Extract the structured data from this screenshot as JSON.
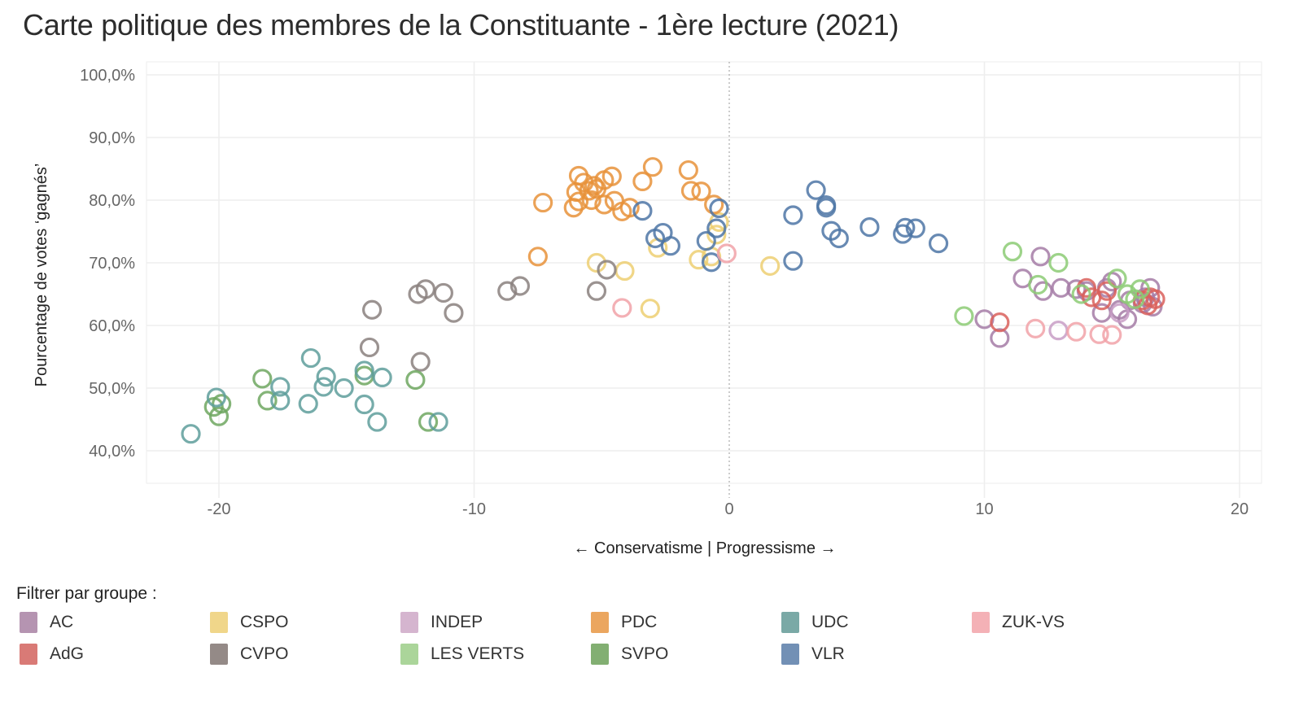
{
  "title": "Carte politique des membres de la Constituante - 1ère lecture (2021)",
  "chart_data": {
    "type": "scatter",
    "title": "Carte politique des membres de la Constituante - 1ère lecture (2021)",
    "xlabel": "← Conservatisme | Progressisme →",
    "ylabel": "Pourcentage de votes ‘gagnés’",
    "xlim": [
      -23,
      20.5
    ],
    "ylim": [
      35,
      102
    ],
    "xticks": [
      -20,
      -10,
      0,
      10,
      20
    ],
    "xtick_labels": [
      "-20",
      "-10",
      "0",
      "10",
      "20"
    ],
    "yticks": [
      40,
      50,
      60,
      70,
      80,
      90,
      100
    ],
    "ytick_labels": [
      "40,0%",
      "50,0%",
      "60,0%",
      "70,0%",
      "80,0%",
      "90,0%",
      "100,0%"
    ],
    "grid": true,
    "zero_line": "dotted-vertical-at-x-0",
    "marker": "open-circle",
    "legend_position": "bottom",
    "series": [
      {
        "name": "AC",
        "color": "#A57BA6",
        "points": [
          [
            10.0,
            61.0
          ],
          [
            10.6,
            58.0
          ],
          [
            12.2,
            71.0
          ],
          [
            11.5,
            67.5
          ],
          [
            12.3,
            65.5
          ],
          [
            13.0,
            66.0
          ],
          [
            13.6,
            65.8
          ],
          [
            14.0,
            65.5
          ],
          [
            14.6,
            62.0
          ],
          [
            14.8,
            66.0
          ],
          [
            15.0,
            67.0
          ],
          [
            15.3,
            62.5
          ],
          [
            15.7,
            64.0
          ],
          [
            15.6,
            61.0
          ],
          [
            16.2,
            63.5
          ],
          [
            16.5,
            66.0
          ],
          [
            16.6,
            63.0
          ],
          [
            16.3,
            64.5
          ]
        ]
      },
      {
        "name": "AdG",
        "color": "#D9605C",
        "points": [
          [
            10.6,
            60.5
          ],
          [
            14.0,
            66.0
          ],
          [
            14.2,
            64.5
          ],
          [
            14.6,
            64.0
          ],
          [
            14.8,
            65.5
          ],
          [
            16.2,
            64.0
          ],
          [
            16.5,
            64.5
          ],
          [
            16.7,
            64.2
          ],
          [
            16.4,
            63.2
          ]
        ]
      },
      {
        "name": "CSPO",
        "color": "#EDCF72",
        "points": [
          [
            -5.2,
            70.0
          ],
          [
            -4.1,
            68.7
          ],
          [
            -2.8,
            72.4
          ],
          [
            -0.4,
            76.5
          ],
          [
            -0.5,
            74.5
          ],
          [
            -1.2,
            70.5
          ],
          [
            -0.7,
            71.0
          ],
          [
            1.6,
            69.5
          ],
          [
            -3.1,
            62.7
          ]
        ]
      },
      {
        "name": "CVPO",
        "color": "#8A807E",
        "points": [
          [
            -14.0,
            62.5
          ],
          [
            -14.1,
            56.5
          ],
          [
            -12.2,
            65.0
          ],
          [
            -11.9,
            65.8
          ],
          [
            -11.2,
            65.2
          ],
          [
            -10.8,
            62.0
          ],
          [
            -8.7,
            65.5
          ],
          [
            -8.2,
            66.3
          ],
          [
            -5.2,
            65.5
          ],
          [
            -4.8,
            68.9
          ],
          [
            -12.1,
            54.2
          ]
        ]
      },
      {
        "name": "INDEP",
        "color": "#C89DC5",
        "points": [
          [
            12.9,
            59.2
          ],
          [
            15.3,
            62.0
          ]
        ]
      },
      {
        "name": "LES VERTS",
        "color": "#8CCB74",
        "points": [
          [
            11.1,
            71.8
          ],
          [
            12.9,
            70.0
          ],
          [
            12.1,
            66.5
          ],
          [
            9.2,
            61.5
          ],
          [
            13.8,
            65.0
          ],
          [
            15.2,
            67.5
          ],
          [
            15.6,
            65.0
          ],
          [
            16.1,
            65.8
          ],
          [
            15.9,
            64.2
          ]
        ]
      },
      {
        "name": "PDC",
        "color": "#E8923A",
        "points": [
          [
            -5.9,
            83.9
          ],
          [
            -5.7,
            82.8
          ],
          [
            -5.5,
            81.5
          ],
          [
            -5.3,
            82.3
          ],
          [
            -5.2,
            81.8
          ],
          [
            -4.9,
            83.2
          ],
          [
            -4.6,
            83.8
          ],
          [
            -6.0,
            81.3
          ],
          [
            -6.1,
            78.8
          ],
          [
            -5.4,
            80.0
          ],
          [
            -4.9,
            79.3
          ],
          [
            -4.5,
            79.9
          ],
          [
            -4.2,
            78.2
          ],
          [
            -3.9,
            78.8
          ],
          [
            -5.9,
            79.8
          ],
          [
            -3.4,
            83.0
          ],
          [
            -3.0,
            85.3
          ],
          [
            -7.3,
            79.6
          ],
          [
            -7.5,
            71.0
          ],
          [
            -1.6,
            84.8
          ],
          [
            -1.5,
            81.5
          ],
          [
            -1.1,
            81.4
          ],
          [
            -0.6,
            79.3
          ]
        ]
      },
      {
        "name": "SVPO",
        "color": "#6FA760",
        "points": [
          [
            -20.0,
            45.5
          ],
          [
            -19.9,
            47.5
          ],
          [
            -18.3,
            51.5
          ],
          [
            -18.1,
            48.0
          ],
          [
            -14.3,
            52.0
          ],
          [
            -12.3,
            51.3
          ],
          [
            -11.8,
            44.6
          ],
          [
            -20.2,
            47.0
          ]
        ]
      },
      {
        "name": "UDC",
        "color": "#5E9E9B",
        "points": [
          [
            -21.1,
            42.7
          ],
          [
            -20.1,
            48.5
          ],
          [
            -17.6,
            50.2
          ],
          [
            -17.6,
            48.0
          ],
          [
            -16.4,
            54.8
          ],
          [
            -15.8,
            51.8
          ],
          [
            -15.1,
            50.0
          ],
          [
            -16.5,
            47.5
          ],
          [
            -14.3,
            52.8
          ],
          [
            -13.6,
            51.7
          ],
          [
            -14.3,
            47.4
          ],
          [
            -13.8,
            44.6
          ],
          [
            -11.4,
            44.6
          ],
          [
            -15.9,
            50.2
          ]
        ]
      },
      {
        "name": "VLR",
        "color": "#4E76A6",
        "points": [
          [
            -3.4,
            78.3
          ],
          [
            -2.9,
            73.9
          ],
          [
            -2.6,
            74.8
          ],
          [
            -2.3,
            72.7
          ],
          [
            -0.9,
            73.5
          ],
          [
            -0.7,
            70.1
          ],
          [
            -0.4,
            78.7
          ],
          [
            2.5,
            77.6
          ],
          [
            2.5,
            70.3
          ],
          [
            3.4,
            81.6
          ],
          [
            3.8,
            78.8
          ],
          [
            3.8,
            79.2
          ],
          [
            4.0,
            75.1
          ],
          [
            4.3,
            73.9
          ],
          [
            5.5,
            75.7
          ],
          [
            6.8,
            74.6
          ],
          [
            6.9,
            75.6
          ],
          [
            7.3,
            75.5
          ],
          [
            8.2,
            73.1
          ],
          [
            -0.5,
            75.5
          ]
        ]
      },
      {
        "name": "ZUK-VS",
        "color": "#F1A2A8",
        "points": [
          [
            -4.2,
            62.8
          ],
          [
            -0.1,
            71.5
          ],
          [
            12.0,
            59.5
          ],
          [
            13.6,
            59.0
          ],
          [
            14.5,
            58.6
          ],
          [
            15.0,
            58.5
          ]
        ]
      }
    ]
  },
  "legend": {
    "title": "Filtrer par groupe :",
    "items": [
      {
        "label": "AC",
        "color": "#B594B1"
      },
      {
        "label": "AdG",
        "color": "#D97A76"
      },
      {
        "label": "CSPO",
        "color": "#F0D68A"
      },
      {
        "label": "CVPO",
        "color": "#948A87"
      },
      {
        "label": "INDEP",
        "color": "#D5B5CF"
      },
      {
        "label": "LES VERTS",
        "color": "#ABD59A"
      },
      {
        "label": "PDC",
        "color": "#EBA65F"
      },
      {
        "label": "SVPO",
        "color": "#82AF72"
      },
      {
        "label": "UDC",
        "color": "#7AA9A6"
      },
      {
        "label": "VLR",
        "color": "#7290B5"
      },
      {
        "label": "ZUK-VS",
        "color": "#F4B1B6"
      }
    ]
  }
}
